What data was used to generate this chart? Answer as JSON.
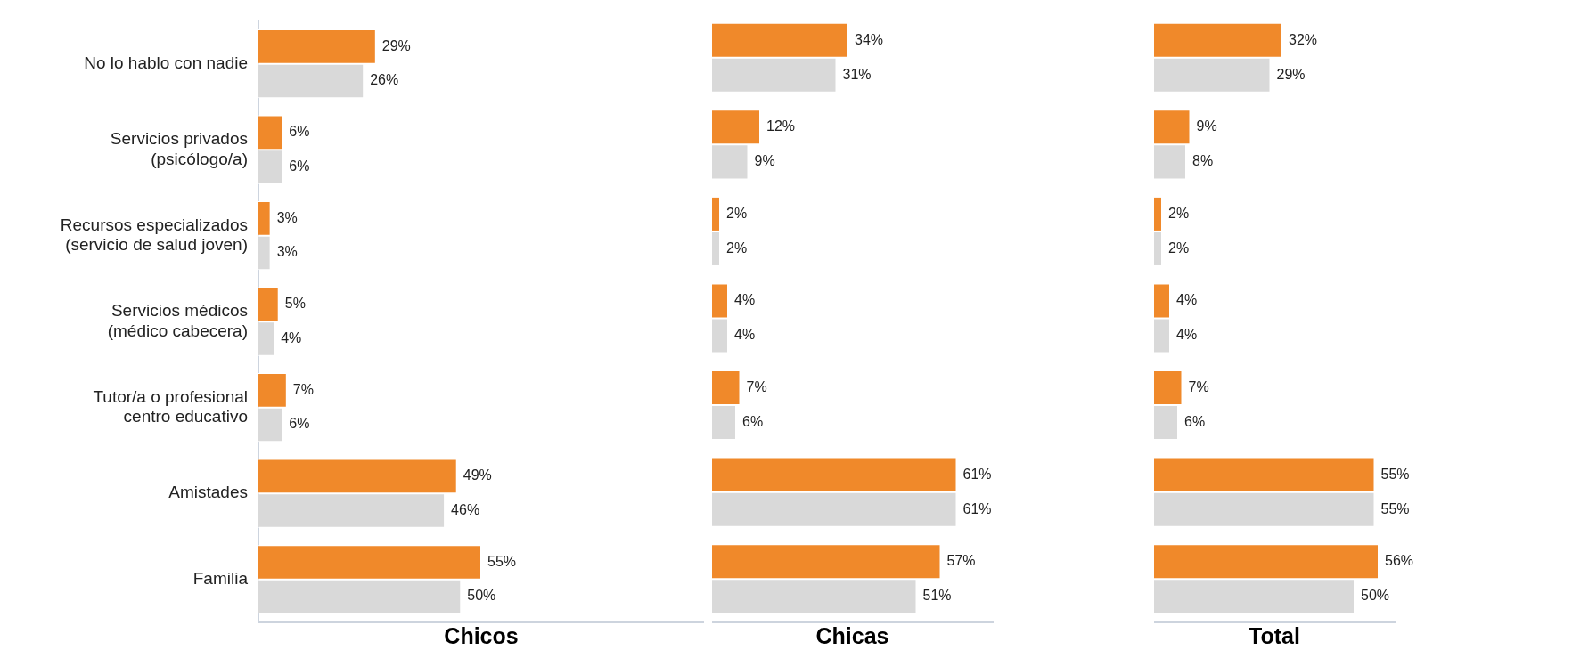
{
  "chart_data": [
    {
      "type": "bar",
      "orientation": "horizontal",
      "xlabel": "Chicos",
      "xlim": [
        0,
        110
      ],
      "grid": false,
      "legend": false,
      "tick_labels": "y",
      "categories": [
        "No lo hablo con nadie",
        "Servicios privados\n(psicólogo/a)",
        "Recursos especializados\n(servicio de salud joven)",
        "Servicios médicos\n(médico cabecera)",
        "Tutor/a o profesional\ncentro educativo",
        "Amistades",
        "Familia"
      ],
      "series": [
        {
          "color": "#f0892a",
          "values": [
            29,
            6,
            3,
            5,
            7,
            49,
            55
          ],
          "value_labels": [
            "29%",
            "6%",
            "3%",
            "5%",
            "7%",
            "49%",
            "55%"
          ]
        },
        {
          "color": "#d9d9d9",
          "values": [
            26,
            6,
            3,
            4,
            6,
            46,
            50
          ],
          "value_labels": [
            "26%",
            "6%",
            "3%",
            "4%",
            "6%",
            "46%",
            "50%"
          ]
        }
      ]
    },
    {
      "type": "bar",
      "orientation": "horizontal",
      "xlabel": "Chicas",
      "grid": false,
      "legend": false,
      "tick_labels": false,
      "categories": [
        null,
        null,
        null,
        null,
        null,
        null,
        null
      ],
      "series": [
        {
          "color": "#f0892a",
          "values": [
            34,
            12,
            2,
            4,
            7,
            61,
            57
          ],
          "value_labels": [
            "34%",
            "12%",
            "2%",
            "4%",
            "7%",
            "61%",
            "57%"
          ]
        },
        {
          "color": "#d9d9d9",
          "values": [
            31,
            9,
            2,
            4,
            6,
            61,
            51
          ],
          "value_labels": [
            "31%",
            "9%",
            "2%",
            "4%",
            "6%",
            "61%",
            "51%"
          ]
        }
      ]
    },
    {
      "type": "bar",
      "orientation": "horizontal",
      "xlabel": "Total",
      "grid": false,
      "legend": false,
      "tick_labels": false,
      "categories": [
        null,
        null,
        null,
        null,
        null,
        null,
        null
      ],
      "series": [
        {
          "color": "#f0892a",
          "values": [
            32,
            9,
            2,
            4,
            7,
            55,
            56
          ],
          "value_labels": [
            "32%",
            "9%",
            "2%",
            "4%",
            "7%",
            "55%",
            "56%"
          ]
        },
        {
          "color": "#d9d9d9",
          "values": [
            29,
            8,
            2,
            4,
            6,
            55,
            50
          ],
          "value_labels": [
            "29%",
            "8%",
            "2%",
            "4%",
            "6%",
            "55%",
            "50%"
          ]
        }
      ]
    }
  ]
}
